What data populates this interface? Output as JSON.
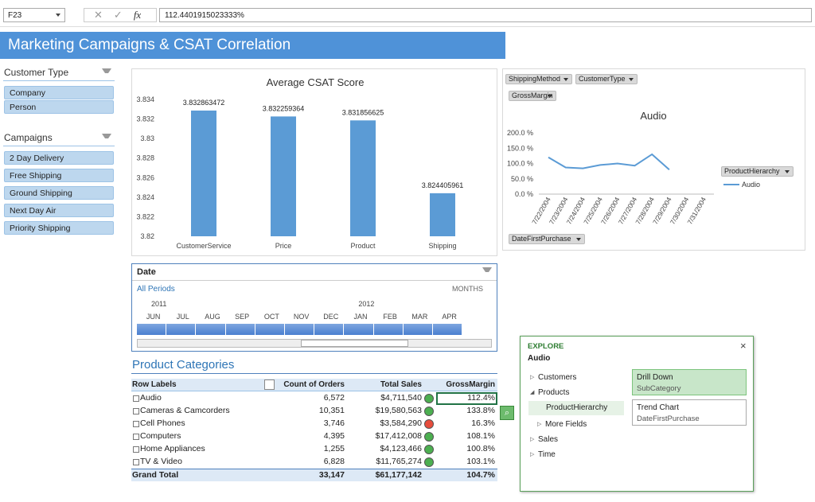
{
  "formula_bar": {
    "cell": "F23",
    "fx": "fx",
    "value": "112.4401915023333%"
  },
  "banner": {
    "title": "Marketing Campaigns & CSAT Correlation"
  },
  "slicers": [
    {
      "title": "Customer Type",
      "items": [
        "Company",
        "Person"
      ]
    },
    {
      "title": "Campaigns",
      "items": [
        "2 Day Delivery",
        "Free Shipping",
        "Ground Shipping",
        "Next Day Air",
        "Priority Shipping"
      ]
    }
  ],
  "chart_data": [
    {
      "type": "bar",
      "title": "Average CSAT Score",
      "categories": [
        "CustomerService",
        "Price",
        "Product",
        "Shipping"
      ],
      "values": [
        3.832863472,
        3.832259364,
        3.831856625,
        3.824405961
      ],
      "color": "#5b9bd5",
      "ylim": [
        3.82,
        3.834
      ],
      "yticks": [
        3.82,
        3.822,
        3.824,
        3.826,
        3.828,
        3.83,
        3.832,
        3.834
      ],
      "grid": false
    },
    {
      "type": "line",
      "title": "Audio",
      "field_buttons": [
        "ShippingMethod",
        "CustomerType",
        "GrossMargin"
      ],
      "axis_field": "DateFirstPurchase",
      "legend_field": "ProductHierarchy",
      "categories": [
        "7/22/2004",
        "7/23/2004",
        "7/24/2004",
        "7/25/2004",
        "7/26/2004",
        "7/27/2004",
        "7/28/2004",
        "7/29/2004",
        "7/30/2004",
        "7/31/2004"
      ],
      "series": [
        {
          "name": "Audio",
          "color": "#5b9bd5",
          "values": [
            120,
            87,
            84,
            95,
            100,
            93,
            130,
            80,
            null,
            null
          ]
        }
      ],
      "ylim": [
        0,
        200
      ],
      "yticks": [
        {
          "value": 0,
          "label": "0.0 %"
        },
        {
          "value": 50,
          "label": "50.0 %"
        },
        {
          "value": 100,
          "label": "100.0 %"
        },
        {
          "value": 150,
          "label": "150.0 %"
        },
        {
          "value": 200,
          "label": "200.0 %"
        }
      ],
      "grid": false
    }
  ],
  "timeline": {
    "title": "Date",
    "period": "All Periods",
    "level": "MONTHS",
    "years": [
      "2011",
      "2012"
    ],
    "months": [
      "JUN",
      "JUL",
      "AUG",
      "SEP",
      "OCT",
      "NOV",
      "DEC",
      "JAN",
      "FEB",
      "MAR",
      "APR"
    ]
  },
  "pivot": {
    "title": "Product Categories",
    "headers": [
      "Row Labels",
      "Count of Orders",
      "Total Sales",
      "GrossMargin"
    ],
    "rows": [
      {
        "label": "Audio",
        "count": "6,572",
        "sales": "$4,711,540",
        "margin": "112.4%",
        "status": "#4caf50"
      },
      {
        "label": "Cameras & Camcorders",
        "count": "10,351",
        "sales": "$19,580,563",
        "margin": "133.8%",
        "status": "#4caf50"
      },
      {
        "label": "Cell Phones",
        "count": "3,746",
        "sales": "$3,584,290",
        "margin": "16.3%",
        "status": "#e74c3c"
      },
      {
        "label": "Computers",
        "count": "4,395",
        "sales": "$17,412,008",
        "margin": "108.1%",
        "status": "#4caf50"
      },
      {
        "label": "Home Appliances",
        "count": "1,255",
        "sales": "$4,123,466",
        "margin": "100.8%",
        "status": "#4caf50"
      },
      {
        "label": "TV & Video",
        "count": "6,828",
        "sales": "$11,765,274",
        "margin": "103.1%",
        "status": "#4caf50"
      }
    ],
    "total": {
      "label": "Grand Total",
      "count": "33,147",
      "sales": "$61,177,142",
      "margin": "104.7%"
    }
  },
  "explore": {
    "title": "EXPLORE",
    "subject": "Audio",
    "tree": [
      "Customers",
      "Products",
      "ProductHierarchy",
      "More Fields",
      "Sales",
      "Time"
    ],
    "actions": [
      {
        "title": "Drill Down",
        "field": "SubCategory"
      },
      {
        "title": "Trend Chart",
        "field": "DateFirstPurchase"
      }
    ]
  }
}
